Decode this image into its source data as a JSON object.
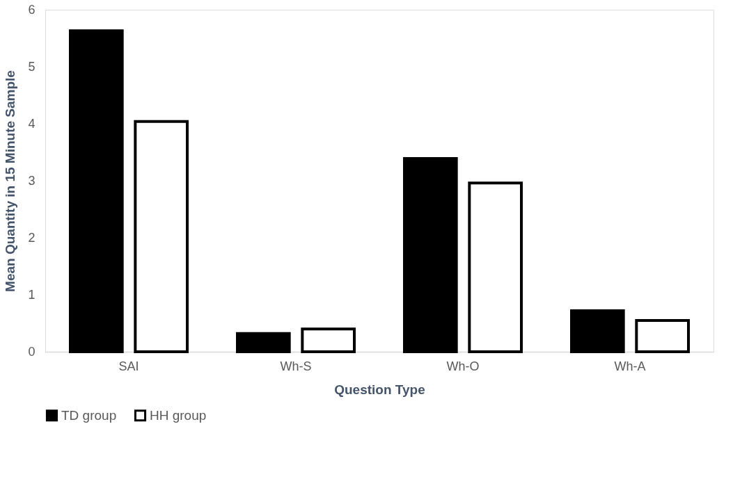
{
  "chart_data": {
    "type": "bar",
    "xlabel": "Question Type",
    "ylabel": "Mean Quantity in 15 Minute Sample",
    "categories": [
      "SAI",
      "Wh-S",
      "Wh-O",
      "Wh-A"
    ],
    "series": [
      {
        "name": "TD group",
        "color": "#000000",
        "values": [
          5.63,
          0.32,
          3.39,
          0.72
        ]
      },
      {
        "name": "HH group",
        "color": "#ffffff",
        "values": [
          4.04,
          0.4,
          2.96,
          0.55
        ]
      }
    ],
    "ylim": [
      0,
      6
    ],
    "yticks": [
      0,
      1,
      2,
      3,
      4,
      5,
      6
    ],
    "grid": false,
    "legend": "bottom"
  }
}
